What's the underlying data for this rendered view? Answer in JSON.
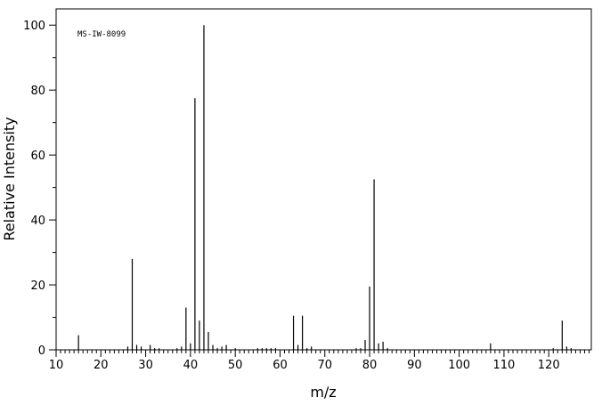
{
  "chart_data": {
    "type": "stem",
    "annotation": "MS-IW-8099",
    "x_label": "m/z",
    "y_label": "Relative Intensity",
    "color": "#000000",
    "x": [
      15,
      26,
      27,
      28,
      29,
      31,
      32,
      33,
      37,
      38,
      39,
      40,
      41,
      42,
      43,
      44,
      45,
      46,
      47,
      48,
      50,
      55,
      56,
      57,
      58,
      59,
      63,
      64,
      65,
      66,
      67,
      77,
      78,
      79,
      80,
      81,
      82,
      83,
      84,
      107,
      121,
      123,
      124,
      125
    ],
    "values": [
      4.5,
      1,
      28,
      1.5,
      1,
      1.5,
      0.5,
      0.5,
      0.5,
      1,
      13,
      2,
      77.5,
      9,
      100,
      5.5,
      1.5,
      0.5,
      1,
      1.5,
      0.5,
      0.5,
      0.5,
      0.5,
      0.5,
      0.5,
      10.5,
      1.5,
      10.5,
      0.5,
      1,
      0.5,
      0.5,
      3,
      19.5,
      52.5,
      2,
      2.5,
      0.5,
      2,
      0.5,
      9,
      1,
      0.5
    ],
    "xlim": [
      10,
      129.5
    ],
    "ylim": [
      0,
      105
    ],
    "xticks": [
      10,
      20,
      30,
      40,
      50,
      60,
      70,
      80,
      90,
      100,
      110,
      120
    ],
    "yticks": [
      0,
      20,
      40,
      60,
      80,
      100
    ],
    "xminor_ticks": [
      11,
      12,
      13,
      14,
      15,
      16,
      17,
      18,
      19,
      21,
      22,
      23,
      24,
      25,
      26,
      27,
      28,
      29,
      31,
      32,
      33,
      34,
      35,
      36,
      37,
      38,
      39,
      41,
      42,
      43,
      44,
      45,
      46,
      47,
      48,
      49,
      51,
      52,
      53,
      54,
      55,
      56,
      57,
      58,
      59,
      61,
      62,
      63,
      64,
      65,
      66,
      67,
      68,
      69,
      71,
      72,
      73,
      74,
      75,
      76,
      77,
      78,
      79,
      81,
      82,
      83,
      84,
      85,
      86,
      87,
      88,
      89,
      91,
      92,
      93,
      94,
      95,
      96,
      97,
      98,
      99,
      101,
      102,
      103,
      104,
      105,
      106,
      107,
      108,
      109,
      111,
      112,
      113,
      114,
      115,
      116,
      117,
      118,
      119,
      121,
      122,
      123,
      124,
      125,
      126,
      127,
      128,
      129
    ],
    "yminor_ticks": [
      10,
      30,
      50,
      70,
      90
    ]
  }
}
